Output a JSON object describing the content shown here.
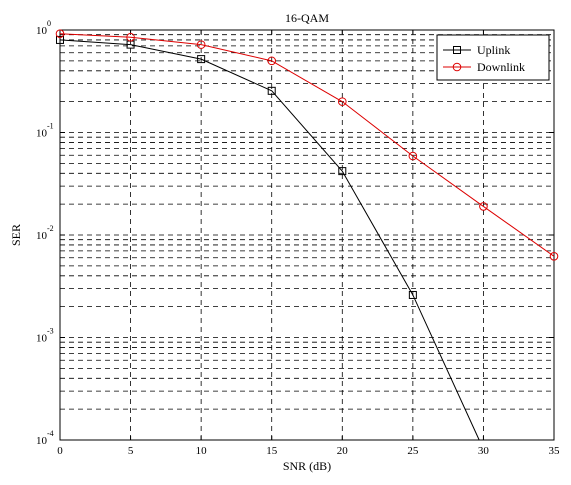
{
  "chart_data": {
    "type": "line",
    "title": "16-QAM",
    "xlabel": "SNR (dB)",
    "ylabel": "SER",
    "xlim": [
      0,
      35
    ],
    "ylim": [
      0.0001,
      1
    ],
    "yscale": "log",
    "grid": true,
    "legend_position": "top-right",
    "x_ticks": [
      0,
      5,
      10,
      15,
      20,
      25,
      30,
      35
    ],
    "x_tick_labels": [
      "0",
      "5",
      "10",
      "15",
      "20",
      "25",
      "30",
      "35"
    ],
    "y_ticks": [
      {
        "value": 1,
        "base": "10",
        "exponent": "0"
      },
      {
        "value": 0.1,
        "base": "10",
        "exponent": "-1"
      },
      {
        "value": 0.01,
        "base": "10",
        "exponent": "-2"
      },
      {
        "value": 0.001,
        "base": "10",
        "exponent": "-3"
      },
      {
        "value": 0.0001,
        "base": "10",
        "exponent": "-4"
      }
    ],
    "series": [
      {
        "name": "Uplink",
        "color": "#000000",
        "marker": "square",
        "x": [
          0,
          5,
          10,
          15,
          20,
          25,
          29.7
        ],
        "y": [
          0.8,
          0.72,
          0.52,
          0.255,
          0.042,
          0.0026,
          0.0001
        ],
        "marker_x": [
          0,
          5,
          10,
          15,
          20,
          25
        ]
      },
      {
        "name": "Downlink",
        "color": "#dd0000",
        "marker": "circle",
        "x": [
          0,
          5,
          10,
          15,
          20,
          25,
          30,
          35
        ],
        "y": [
          0.92,
          0.85,
          0.72,
          0.5,
          0.2,
          0.059,
          0.019,
          0.0062
        ],
        "marker_x": [
          0,
          5,
          10,
          15,
          20,
          25,
          30,
          35
        ]
      }
    ]
  }
}
